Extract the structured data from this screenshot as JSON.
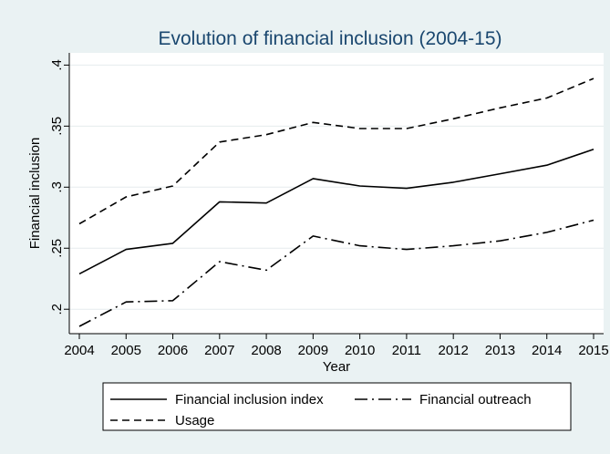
{
  "chart_data": {
    "type": "line",
    "title": "Evolution of financial inclusion (2004-15)",
    "xlabel": "Year",
    "ylabel": "Financial inclusion",
    "x": [
      2004,
      2005,
      2006,
      2007,
      2008,
      2009,
      2010,
      2011,
      2012,
      2013,
      2014,
      2015
    ],
    "x_tick_labels": [
      "2004",
      "2005",
      "2006",
      "2007",
      "2008",
      "2009",
      "2010",
      "2011",
      "2012",
      "2013",
      "2014",
      "2015"
    ],
    "y_ticks": [
      0.2,
      0.25,
      0.3,
      0.35,
      0.4
    ],
    "y_tick_labels": [
      ".2",
      ".25",
      ".3",
      ".35",
      ".4"
    ],
    "xlim": [
      2004,
      2015
    ],
    "ylim": [
      0.18,
      0.41
    ],
    "grid": true,
    "legend_position": "bottom",
    "series": [
      {
        "name": "Financial inclusion index",
        "style": "solid",
        "values": [
          0.229,
          0.249,
          0.254,
          0.288,
          0.287,
          0.307,
          0.301,
          0.299,
          0.304,
          0.311,
          0.318,
          0.331
        ]
      },
      {
        "name": "Financial outreach",
        "style": "dash-dot",
        "values": [
          0.186,
          0.206,
          0.207,
          0.239,
          0.232,
          0.26,
          0.252,
          0.249,
          0.252,
          0.256,
          0.263,
          0.273
        ]
      },
      {
        "name": "Usage",
        "style": "dashed",
        "values": [
          0.27,
          0.292,
          0.301,
          0.337,
          0.343,
          0.353,
          0.348,
          0.348,
          0.356,
          0.365,
          0.373,
          0.389
        ]
      }
    ]
  }
}
